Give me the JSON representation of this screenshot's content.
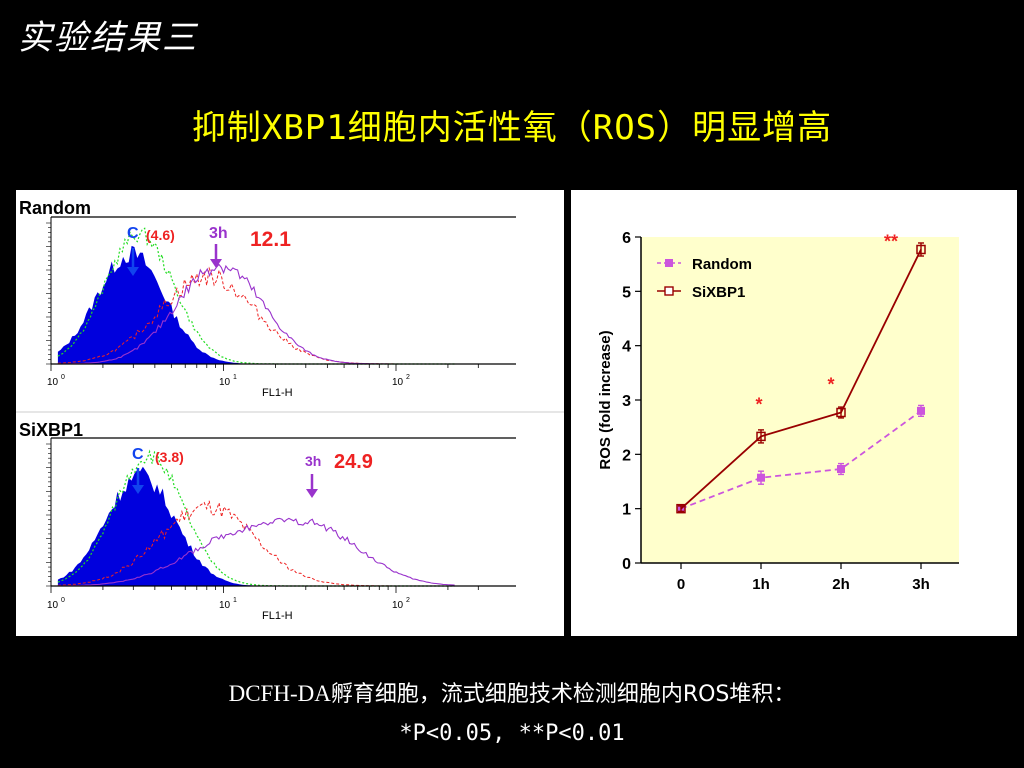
{
  "slide": {
    "title": "实验结果三",
    "headline": "抑制XBP1细胞内活性氧（ROS）明显增高",
    "caption_latin": "DCFH-DA",
    "caption_rest": "孵育细胞，流式细胞技术检测细胞内ROS堆积：",
    "caption_line2": "*P<0.05, **P<0.01"
  },
  "colors": {
    "control_fill": "#0000dd",
    "green_trace": "#22dd22",
    "red_trace": "#ee2222",
    "purple_trace": "#9933cc",
    "chart_bg": "#ffffcc",
    "random_line": "#cc55dd",
    "sixbp1_line": "#990000"
  },
  "chart_data": [
    {
      "type": "area",
      "panel": "Random",
      "xlabel": "FL1-H",
      "x_scale": "log",
      "x_ticks": [
        "10^0",
        "10^1",
        "10^2"
      ],
      "annotations": {
        "control": "C",
        "control_value": "(4.6)",
        "time": "3h",
        "time_value": "12.1"
      },
      "control_peak_x": 2.9,
      "time_peak_x": 9.5
    },
    {
      "type": "area",
      "panel": "SiXBP1",
      "xlabel": "FL1-H",
      "x_scale": "log",
      "x_ticks": [
        "10^0",
        "10^1",
        "10^2"
      ],
      "annotations": {
        "control": "C",
        "control_value": "(3.8)",
        "time": "3h",
        "time_value": "24.9"
      },
      "control_peak_x": 3.3,
      "time_peak_x": 35
    },
    {
      "type": "line",
      "title": "",
      "xlabel": "",
      "ylabel": "ROS (fold increase)",
      "categories": [
        "0",
        "1h",
        "2h",
        "3h"
      ],
      "ylim": [
        0,
        6
      ],
      "yticks": [
        "0",
        "1",
        "2",
        "3",
        "4",
        "5",
        "6"
      ],
      "legend_position": "top-left",
      "series": [
        {
          "name": "Random",
          "values": [
            1.0,
            1.57,
            1.73,
            2.8
          ],
          "errors": [
            0.05,
            0.12,
            0.1,
            0.1
          ],
          "style": "dashed"
        },
        {
          "name": "SiXBP1",
          "values": [
            1.0,
            2.33,
            2.77,
            5.77
          ],
          "errors": [
            0.05,
            0.12,
            0.1,
            0.12
          ],
          "style": "solid"
        }
      ],
      "significance": [
        "",
        "*",
        "*",
        "**"
      ]
    }
  ]
}
